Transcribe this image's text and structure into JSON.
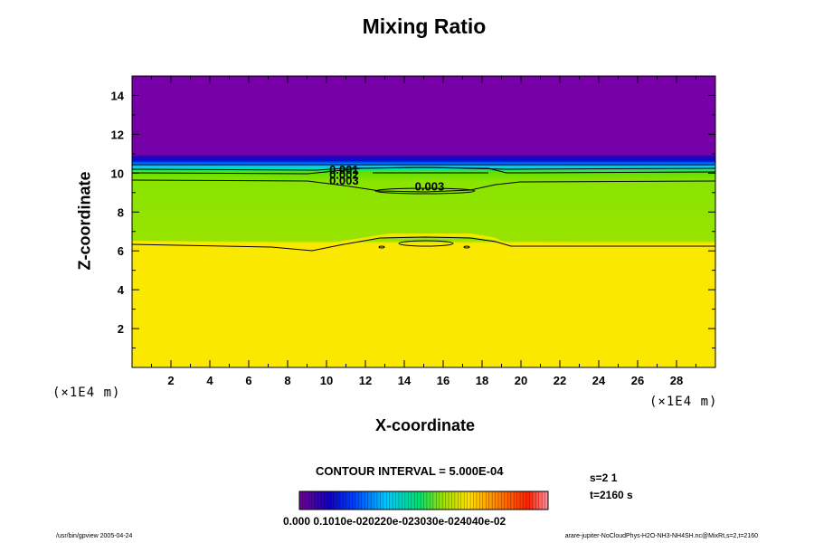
{
  "chart_data": {
    "type": "heatmap",
    "title": "Mixing Ratio",
    "xlabel": "X-coordinate",
    "ylabel": "Z-coordinate",
    "x_unit": "(×1E4 m)",
    "y_unit": "(×1E4 m)",
    "xlim": [
      0,
      30
    ],
    "ylim": [
      0,
      15
    ],
    "x_ticks": [
      2,
      4,
      6,
      8,
      10,
      12,
      14,
      16,
      18,
      20,
      22,
      24,
      26,
      28
    ],
    "y_ticks": [
      2,
      4,
      6,
      8,
      10,
      12,
      14
    ],
    "x_tick_labels": [
      "2",
      "4",
      "6",
      "8",
      "10",
      "12",
      "14",
      "16",
      "18",
      "20",
      "22",
      "24",
      "26",
      "28"
    ],
    "y_tick_labels": [
      "2",
      "4",
      "6",
      "8",
      "10",
      "12",
      "14"
    ],
    "regions": [
      {
        "description": "z above ~10.8",
        "mixing_ratio": 0.0
      },
      {
        "description": "z ~9.7 to ~10.8 (sharp gradient)",
        "mixing_ratio_range": [
          0.0,
          0.003
        ]
      },
      {
        "description": "z ~6.4 to ~9.7",
        "mixing_ratio": 0.003
      },
      {
        "description": "z below ~6.4",
        "mixing_ratio": 0.0035
      }
    ],
    "contour_labels": [
      {
        "text": "0.001",
        "x": 10.9,
        "z": 10.2
      },
      {
        "text": "0.002",
        "x": 10.9,
        "z": 9.95
      },
      {
        "text": "0.003",
        "x": 10.9,
        "z": 9.65
      },
      {
        "text": "0.003",
        "x": 15.3,
        "z": 9.35
      }
    ],
    "contour_interval_text": "CONTOUR INTERVAL = 5.000E-04",
    "colorbar": {
      "range": [
        0.0,
        0.05
      ],
      "labels_text": "0.000 0.1010e-020220e-023030e-024040e-02",
      "colors": [
        "#700090",
        "#0000ff",
        "#00c8ff",
        "#00e070",
        "#a0e000",
        "#ffe000",
        "#ff8000",
        "#ff2000",
        "#ff90a0"
      ]
    },
    "plot_colors": {
      "top": "#7800a8",
      "gradient": [
        "#6a00a8",
        "#0000c8",
        "#0060ff",
        "#00c8ff",
        "#00e8a0",
        "#70e000"
      ],
      "middle": "#88e400",
      "bottom": "#fbe800"
    }
  },
  "status": {
    "step": "s=2 1",
    "time": "t=2160 s"
  },
  "footer": {
    "left": "/usr/bin/gpview 2005-04-24",
    "right": "arare-jupiter-NoCloudPhys-H2O-NH3-NH4SH.nc@MixRt,s=2,t=2160"
  }
}
